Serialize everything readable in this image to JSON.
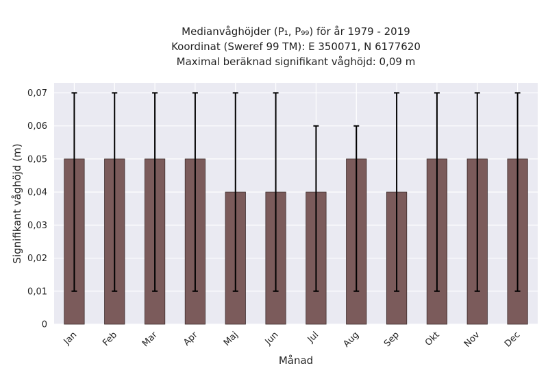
{
  "chart_data": {
    "type": "bar",
    "title_lines": [
      "Medianvåghöjder (P₁, P₉₉) för år 1979 - 2019",
      "Koordinat (Sweref 99 TM): E 350071, N 6177620",
      "Maximal beräknad signifikant våghöjd: 0,09 m"
    ],
    "xlabel": "Månad",
    "ylabel": "Signifikant våghöjd (m)",
    "categories": [
      "Jan",
      "Feb",
      "Mar",
      "Apr",
      "Maj",
      "Jun",
      "Jul",
      "Aug",
      "Sep",
      "Okt",
      "Nov",
      "Dec"
    ],
    "values": [
      0.05,
      0.05,
      0.05,
      0.05,
      0.04,
      0.04,
      0.04,
      0.05,
      0.04,
      0.05,
      0.05,
      0.05
    ],
    "error_low": [
      0.01,
      0.01,
      0.01,
      0.01,
      0.01,
      0.01,
      0.01,
      0.01,
      0.01,
      0.01,
      0.01,
      0.01
    ],
    "error_high": [
      0.07,
      0.07,
      0.07,
      0.07,
      0.07,
      0.07,
      0.06,
      0.06,
      0.07,
      0.07,
      0.07,
      0.07
    ],
    "ylim": [
      0,
      0.073
    ],
    "yticks": [
      0,
      0.01,
      0.02,
      0.03,
      0.04,
      0.05,
      0.06,
      0.07
    ],
    "ytick_labels": [
      "0",
      "0,01",
      "0,02",
      "0,03",
      "0,04",
      "0,05",
      "0,06",
      "0,07"
    ],
    "grid": true,
    "bar_color": "#7b5b5b",
    "bar_edge_color": "#3d2d2d",
    "error_color": "#000000",
    "background_color": "#eaeaf2",
    "grid_color": "#ffffff"
  }
}
